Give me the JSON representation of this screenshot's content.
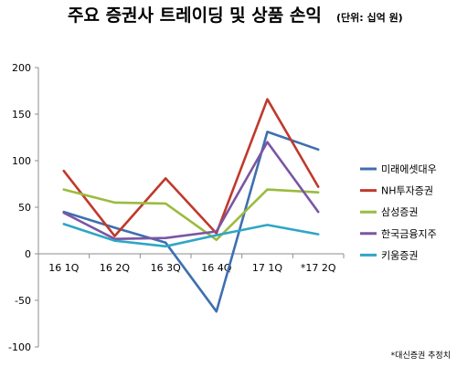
{
  "chart_data": {
    "type": "line",
    "title": "주요 증권사 트레이딩 및 상품 손익",
    "unit": "(단위: 십억 원)",
    "categories": [
      "16 1Q",
      "16 2Q",
      "16 3Q",
      "16 4Q",
      "17 1Q",
      "*17 2Q"
    ],
    "ylim": [
      -100,
      200
    ],
    "yticks": [
      200,
      150,
      100,
      50,
      0,
      -50,
      -100
    ],
    "grid": false,
    "legend_position": "right",
    "series": [
      {
        "name": "미래에셋대우",
        "color": "#3e6fb0",
        "values": [
          45,
          28,
          12,
          -62,
          131,
          112
        ]
      },
      {
        "name": "NH투자증권",
        "color": "#c0392b",
        "values": [
          89,
          19,
          81,
          22,
          166,
          72
        ]
      },
      {
        "name": "삼성증권",
        "color": "#9bbb3f",
        "values": [
          69,
          55,
          54,
          15,
          69,
          66
        ]
      },
      {
        "name": "한국금융지주",
        "color": "#7b55a3",
        "values": [
          44,
          16,
          17,
          24,
          120,
          45
        ]
      },
      {
        "name": "키움증권",
        "color": "#2ea6c6",
        "values": [
          32,
          14,
          8,
          20,
          31,
          21
        ]
      }
    ],
    "note": "*대신증권 추정치"
  }
}
